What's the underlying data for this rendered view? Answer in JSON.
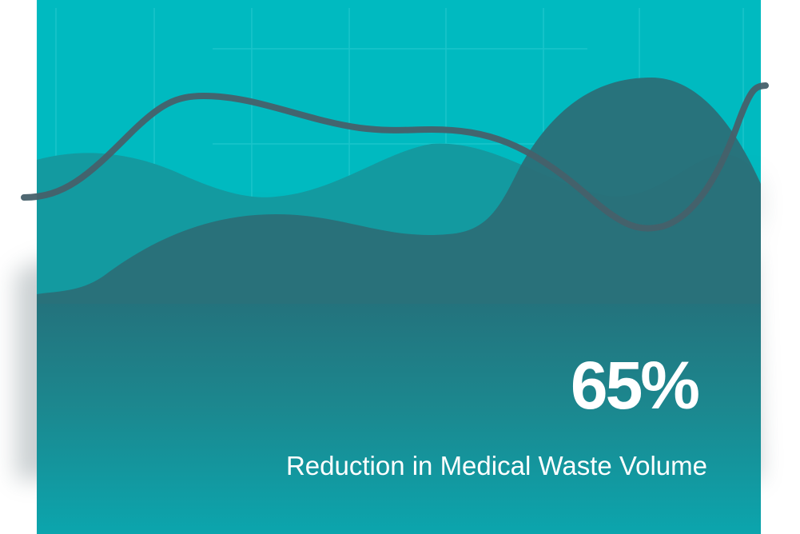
{
  "stat": {
    "value": "65%",
    "label": "Reduction in Medical Waste Volume"
  },
  "colors": {
    "panel_top": "#00bac0",
    "panel_bottom": "#08abb3",
    "dark_wave": "#2e6670",
    "line": "#46606a",
    "text": "#ffffff"
  }
}
